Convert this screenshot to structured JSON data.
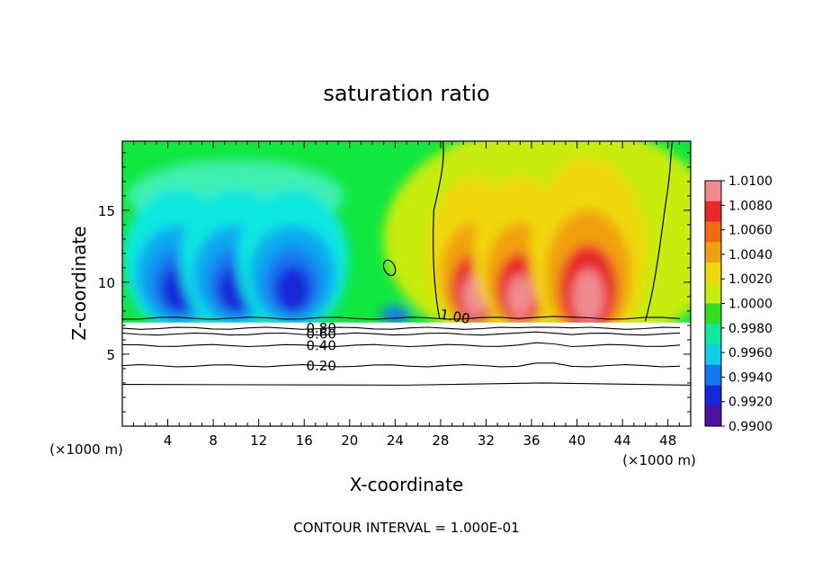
{
  "chart_data": {
    "type": "heatmap",
    "title": "saturation ratio",
    "xlabel": "X-coordinate",
    "ylabel": "Z-coordinate",
    "x_unit": "(×1000 m)",
    "y_unit": "(×1000 m)",
    "xlim": [
      0,
      50
    ],
    "ylim": [
      0,
      19.8
    ],
    "x_ticks": [
      4,
      8,
      12,
      16,
      20,
      24,
      28,
      32,
      36,
      40,
      44,
      48
    ],
    "y_ticks": [
      5,
      10,
      15
    ],
    "footer": "CONTOUR INTERVAL = 1.000E-01",
    "colorbar": {
      "labels": [
        "1.0100",
        "1.0080",
        "1.0060",
        "1.0040",
        "1.0020",
        "1.0000",
        "0.9980",
        "0.9960",
        "0.9940",
        "0.9920",
        "0.9900"
      ],
      "colors": [
        "#f08c90",
        "#e8282a",
        "#f06a10",
        "#f0a010",
        "#f0d810",
        "#c8ec10",
        "#30e020",
        "#10e8a0",
        "#10d0e8",
        "#1478f0",
        "#1428d8",
        "#5010a0"
      ]
    },
    "contours": [
      {
        "label": "0.20",
        "z": 4.2
      },
      {
        "label": "0.40",
        "z": 5.6
      },
      {
        "label": "0.60",
        "z": 6.4
      },
      {
        "label": "0.80",
        "z": 6.8
      },
      {
        "label": "1.00",
        "z": 7.5
      }
    ],
    "field_regions": {
      "dry_cells_centers_x": [
        5,
        10,
        15
      ],
      "moist_cells_centers_x": [
        31,
        35,
        41
      ],
      "unsaturated_below_z": 7.2
    }
  }
}
